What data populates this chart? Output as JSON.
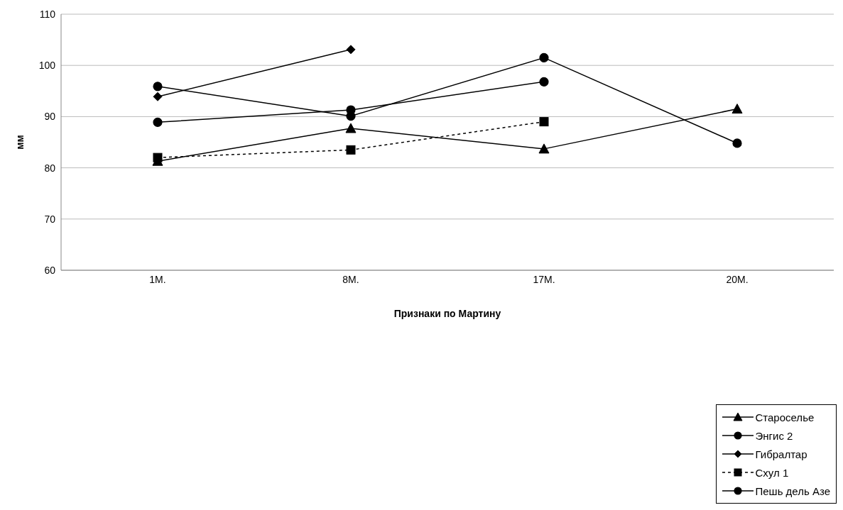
{
  "chart_data": {
    "type": "line",
    "xlabel": "Признаки по Мартину",
    "ylabel": "мм",
    "categories": [
      "1M.",
      "8M.",
      "17M.",
      "20M."
    ],
    "series": [
      {
        "name": "Староселье",
        "color": "#000000",
        "marker": "triangle",
        "line_style": "solid",
        "values": [
          81.3,
          87.7,
          83.7,
          91.5
        ]
      },
      {
        "name": "Энгис 2",
        "color": "#000000",
        "marker": "circle",
        "line_style": "solid",
        "values": [
          95.9,
          90.1,
          101.5,
          84.8
        ]
      },
      {
        "name": "Гибралтар",
        "color": "#000000",
        "marker": "diamond",
        "line_style": "solid",
        "values": [
          93.9,
          103.1,
          null,
          null
        ]
      },
      {
        "name": "Схул 1",
        "color": "#000000",
        "marker": "square",
        "line_style": "dashed",
        "values": [
          82.0,
          83.5,
          89.0,
          null
        ]
      },
      {
        "name": "Пешь дель Азе",
        "color": "#000000",
        "marker": "circle",
        "line_style": "solid",
        "values": [
          88.9,
          91.3,
          96.8,
          null
        ]
      }
    ],
    "ylim": [
      60,
      110
    ],
    "yticks": [
      60,
      70,
      80,
      90,
      100,
      110
    ],
    "grid": "y",
    "legend": "bottom right"
  }
}
